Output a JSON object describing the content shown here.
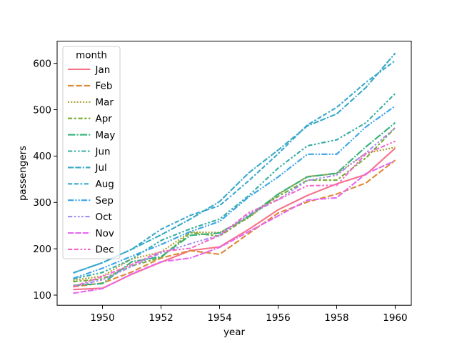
{
  "chart_data": {
    "type": "line",
    "title": "",
    "xlabel": "year",
    "ylabel": "passengers",
    "x": [
      1949,
      1950,
      1951,
      1952,
      1953,
      1954,
      1955,
      1956,
      1957,
      1958,
      1959,
      1960
    ],
    "xticks": [
      1950,
      1952,
      1954,
      1956,
      1958,
      1960
    ],
    "yticks": [
      100,
      200,
      300,
      400,
      500,
      600
    ],
    "xlim": [
      1948.45,
      1960.55
    ],
    "ylim": [
      78.1,
      647.9
    ],
    "grid": false,
    "legend": {
      "title": "month",
      "position": "upper-left",
      "frame_color": "#cccccc"
    },
    "axis_color": "#000000",
    "background_color": "#ffffff",
    "series": [
      {
        "name": "Jan",
        "color": "#f77189",
        "dash": [],
        "values": [
          112,
          115,
          145,
          171,
          196,
          204,
          242,
          284,
          315,
          340,
          360,
          417
        ]
      },
      {
        "name": "Feb",
        "color": "#dc8932",
        "dash": [
          8.3,
          3.1
        ],
        "values": [
          118,
          126,
          150,
          180,
          196,
          188,
          233,
          277,
          301,
          318,
          342,
          391
        ]
      },
      {
        "name": "Mar",
        "color": "#ae9d31",
        "dash": [
          2.1,
          2.1
        ],
        "values": [
          132,
          141,
          178,
          193,
          236,
          235,
          267,
          317,
          356,
          362,
          406,
          419
        ]
      },
      {
        "name": "Apr",
        "color": "#77ab31",
        "dash": [
          6.2,
          2.6,
          3.1,
          2.6
        ],
        "values": [
          129,
          135,
          163,
          181,
          235,
          227,
          269,
          313,
          348,
          348,
          396,
          461
        ]
      },
      {
        "name": "May",
        "color": "#33b07a",
        "dash": [
          10.4,
          2.1,
          2.1,
          2.1
        ],
        "values": [
          121,
          125,
          172,
          183,
          229,
          234,
          270,
          318,
          355,
          363,
          420,
          472
        ]
      },
      {
        "name": "Jun",
        "color": "#36ada4",
        "dash": [
          6.2,
          2.6,
          2.6,
          2.6,
          2.6,
          2.6
        ],
        "values": [
          135,
          149,
          178,
          218,
          243,
          264,
          315,
          374,
          422,
          435,
          472,
          535
        ]
      },
      {
        "name": "Jul",
        "color": "#38a9c5",
        "dash": [
          8.3,
          2.1,
          8.3,
          2.1,
          2.1,
          2.1
        ],
        "values": [
          148,
          170,
          199,
          230,
          264,
          302,
          364,
          413,
          465,
          491,
          548,
          622
        ]
      },
      {
        "name": "Aug",
        "color": "#37a7cd",
        "dash": [
          6.2,
          2.6,
          6.2,
          2.6,
          2.6,
          2.6
        ],
        "values": [
          148,
          170,
          199,
          242,
          272,
          293,
          347,
          405,
          467,
          505,
          559,
          606
        ]
      },
      {
        "name": "Sep",
        "color": "#3ba3ec",
        "dash": [
          8.3,
          2.1,
          2.1,
          2.1,
          2.1,
          2.1
        ],
        "values": [
          136,
          158,
          184,
          209,
          237,
          259,
          312,
          355,
          404,
          404,
          463,
          508
        ]
      },
      {
        "name": "Oct",
        "color": "#a48cf4",
        "dash": [
          6.2,
          2.6,
          2.6,
          2.6,
          2.6,
          2.6,
          2.6,
          2.6
        ],
        "values": [
          119,
          133,
          162,
          191,
          211,
          229,
          274,
          306,
          347,
          359,
          407,
          461
        ]
      },
      {
        "name": "Nov",
        "color": "#e866f4",
        "dash": [
          8.3,
          2.1,
          8.3,
          2.1,
          8.3,
          2.1,
          2.1,
          2.1
        ],
        "values": [
          104,
          114,
          146,
          172,
          180,
          203,
          237,
          271,
          305,
          310,
          362,
          390
        ]
      },
      {
        "name": "Dec",
        "color": "#f565cc",
        "dash": [
          6.2,
          2.6,
          6.2,
          2.6,
          2.6,
          2.6,
          2.6,
          2.6
        ],
        "values": [
          118,
          140,
          166,
          194,
          201,
          229,
          278,
          306,
          336,
          337,
          405,
          432
        ]
      }
    ]
  }
}
